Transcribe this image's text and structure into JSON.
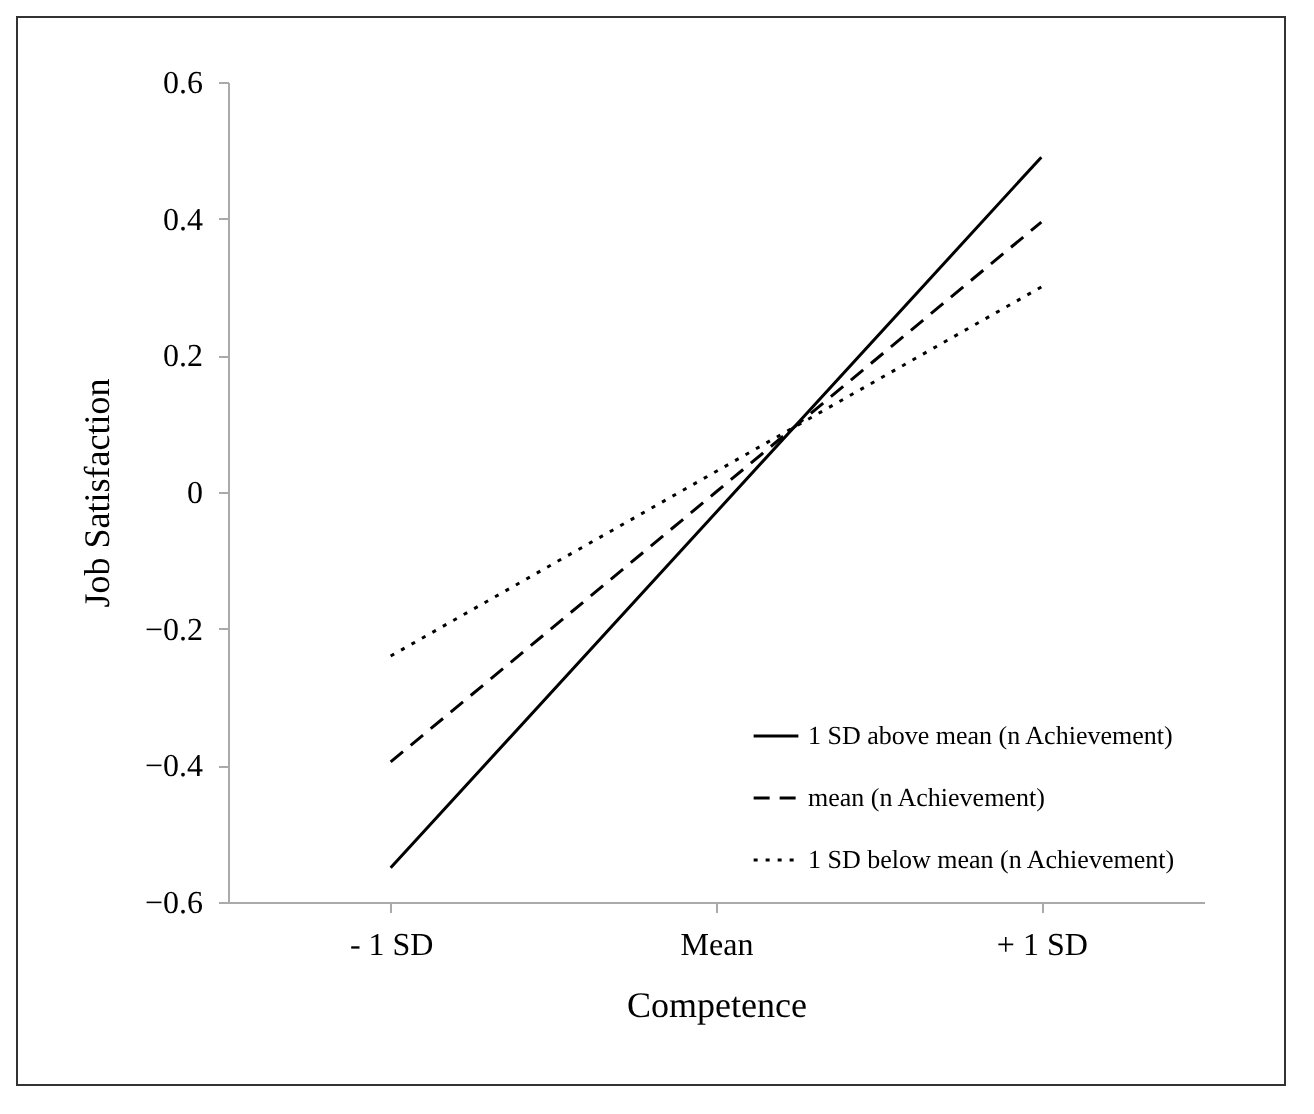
{
  "chart_data": {
    "type": "line",
    "xlabel": "Competence",
    "ylabel": "Job Satisfaction",
    "categories": [
      "- 1 SD",
      "Mean",
      "+ 1 SD"
    ],
    "series": [
      {
        "name": "1 SD above mean (n Achievement)",
        "color": "#000000",
        "line_style": "solid",
        "values": [
          -0.55,
          -0.03,
          0.49
        ]
      },
      {
        "name": "mean (n Achievement)",
        "color": "#000000",
        "line_style": "dashed",
        "values": [
          -0.395,
          0.0,
          0.395
        ]
      },
      {
        "name": "1 SD below mean (n Achievement)",
        "color": "#000000",
        "line_style": "dotted",
        "values": [
          -0.24,
          0.03,
          0.3
        ]
      }
    ],
    "ylim": [
      -0.6,
      0.6
    ],
    "yticks": [
      -0.6,
      -0.4,
      -0.2,
      0,
      0.2,
      0.4,
      0.6
    ],
    "grid": false,
    "legend": "bottom right",
    "marker": "none"
  }
}
